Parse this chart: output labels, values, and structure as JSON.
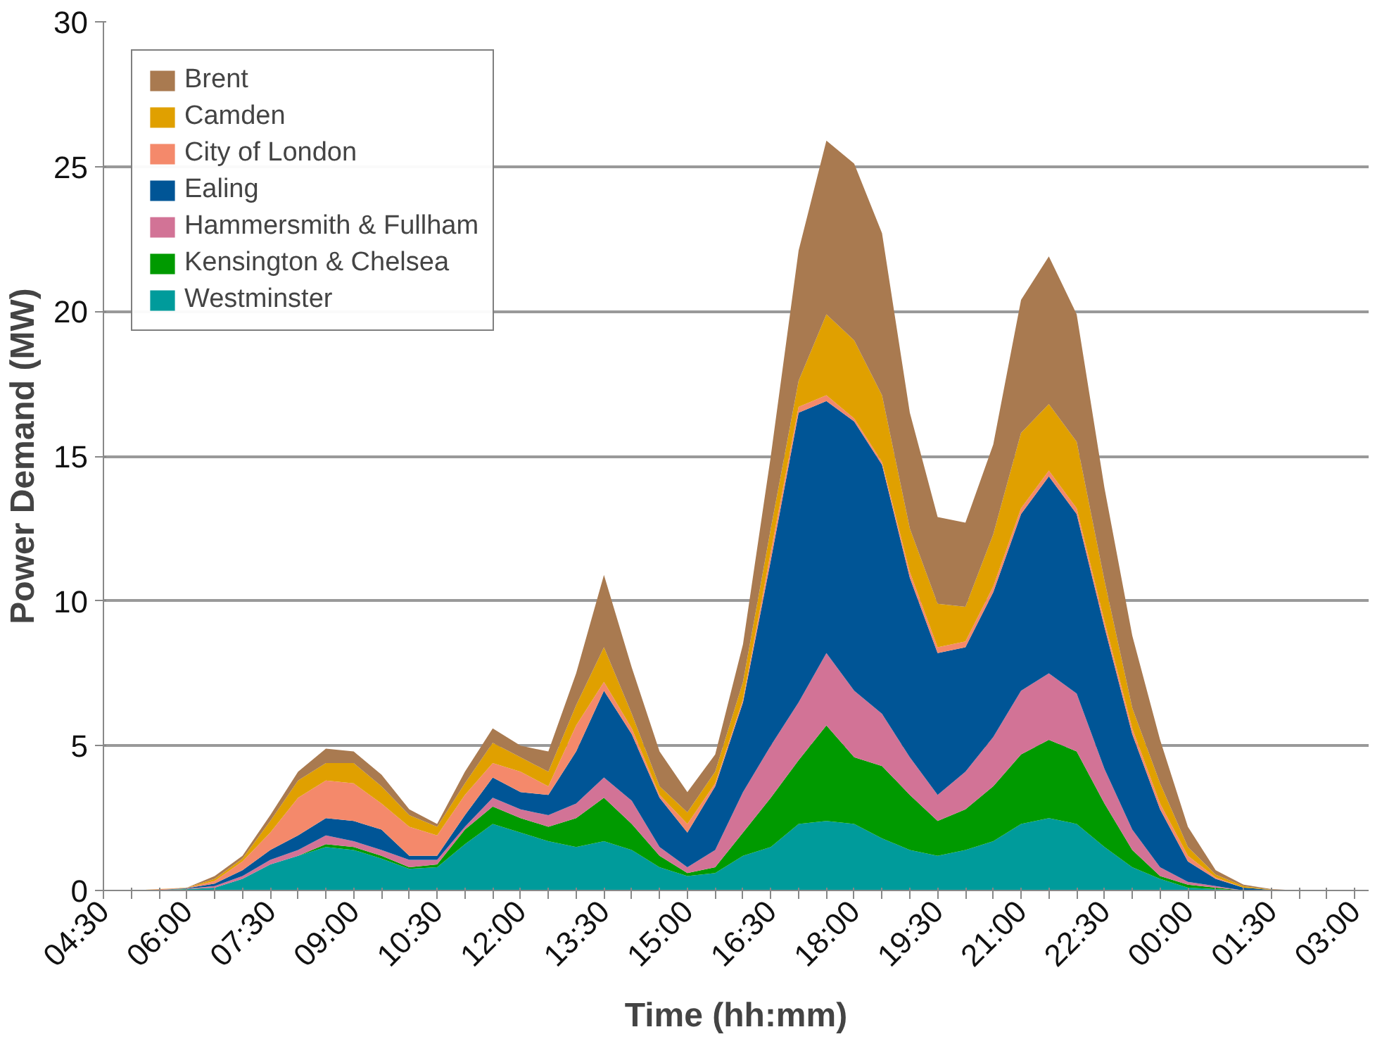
{
  "chart_data": {
    "type": "area",
    "stacked": true,
    "xlabel": "Time (hh:mm)",
    "ylabel": "Power Demand (MW)",
    "categories": [
      "04:30",
      null,
      null,
      "06:00",
      null,
      null,
      "07:30",
      null,
      null,
      "09:00",
      null,
      null,
      "10:30",
      null,
      null,
      "12:00",
      null,
      null,
      "13:30",
      null,
      null,
      "15:00",
      null,
      null,
      "16:30",
      null,
      null,
      "18:00",
      null,
      null,
      "19:30",
      null,
      null,
      "21:00",
      null,
      null,
      "22:30",
      null,
      null,
      "00:00",
      null,
      null,
      "01:30",
      null,
      null,
      "03:00"
    ],
    "ylim": [
      0,
      30
    ],
    "yticks": [
      0,
      5,
      10,
      15,
      20,
      25,
      30
    ],
    "grid": "y",
    "legend": "top left",
    "series": [
      {
        "name": "Westminster",
        "color": "#009b9b",
        "values": [
          0,
          0,
          0.02,
          0.04,
          0.1,
          0.4,
          0.9,
          1.2,
          1.5,
          1.4,
          1.1,
          0.75,
          0.8,
          1.6,
          2.3,
          2.0,
          1.7,
          1.5,
          1.7,
          1.4,
          0.8,
          0.5,
          0.6,
          1.2,
          1.5,
          2.3,
          2.4,
          2.3,
          1.8,
          1.4,
          1.2,
          1.4,
          1.7,
          2.3,
          2.5,
          2.3,
          1.5,
          0.8,
          0.4,
          0.1,
          0.05,
          0,
          0,
          0,
          0,
          0
        ]
      },
      {
        "name": "Kensington & Chelsea",
        "color": "#009a00",
        "values": [
          0,
          0,
          0,
          0.01,
          0,
          0,
          0,
          0,
          0.1,
          0.1,
          0.1,
          0.05,
          0.1,
          0.5,
          0.6,
          0.5,
          0.5,
          1.0,
          1.5,
          0.9,
          0.4,
          0.1,
          0.2,
          0.8,
          1.7,
          2.2,
          3.3,
          2.3,
          2.5,
          1.9,
          1.2,
          1.4,
          1.9,
          2.4,
          2.7,
          2.5,
          1.5,
          0.6,
          0.1,
          0.1,
          0.05,
          0,
          0,
          0,
          0,
          0
        ]
      },
      {
        "name": "Hammersmith & Fullham",
        "color": "#d27396",
        "values": [
          0,
          0,
          0,
          0.01,
          0.05,
          0.1,
          0.16,
          0.2,
          0.3,
          0.2,
          0.2,
          0.26,
          0.16,
          0.1,
          0.3,
          0.3,
          0.4,
          0.5,
          0.7,
          0.8,
          0.3,
          0.2,
          0.6,
          1.4,
          1.8,
          2.0,
          2.5,
          2.3,
          1.8,
          1.3,
          0.9,
          1.3,
          1.7,
          2.2,
          2.3,
          2.0,
          1.2,
          0.7,
          0.3,
          0.1,
          0.05,
          0,
          0,
          0,
          0,
          0
        ]
      },
      {
        "name": "Ealing",
        "color": "#005596",
        "values": [
          0,
          0,
          0,
          0.02,
          0.09,
          0.2,
          0.34,
          0.5,
          0.6,
          0.7,
          0.7,
          0.14,
          0.14,
          0.4,
          0.7,
          0.6,
          0.7,
          1.8,
          3.0,
          2.3,
          1.7,
          1.2,
          2.2,
          3.1,
          6.4,
          10.0,
          8.7,
          9.3,
          8.6,
          6.2,
          4.9,
          4.3,
          5.0,
          6.1,
          6.8,
          6.2,
          4.9,
          3.3,
          2.0,
          0.7,
          0.25,
          0.1,
          0.02,
          0,
          0,
          0
        ]
      },
      {
        "name": "City of London",
        "color": "#f4896b",
        "values": [
          0,
          0,
          0.02,
          0.01,
          0.09,
          0.3,
          0.6,
          1.3,
          1.3,
          1.3,
          0.9,
          1.0,
          0.7,
          0.7,
          0.5,
          0.7,
          0.3,
          0.9,
          0.3,
          0.2,
          0.1,
          0.3,
          0.1,
          0.1,
          0.3,
          0.2,
          0.2,
          0.1,
          0.1,
          0.2,
          0.2,
          0.2,
          0.2,
          0.2,
          0.2,
          0.2,
          0.2,
          0.2,
          0.2,
          0.2,
          0.05,
          0,
          0,
          0,
          0,
          0
        ]
      },
      {
        "name": "Camden",
        "color": "#e0a000",
        "values": [
          0,
          0,
          0.01,
          0.01,
          0.07,
          0.1,
          0.4,
          0.6,
          0.6,
          0.7,
          0.6,
          0.4,
          0.3,
          0.4,
          0.7,
          0.5,
          0.5,
          0.7,
          1.2,
          0.5,
          0.3,
          0.4,
          0.4,
          0.6,
          0.8,
          0.9,
          2.8,
          2.7,
          2.3,
          1.5,
          1.5,
          1.2,
          1.8,
          2.6,
          2.3,
          2.3,
          1.4,
          0.7,
          0.7,
          0.3,
          0.1,
          0.05,
          0.01,
          0,
          0,
          0
        ]
      },
      {
        "name": "Brent",
        "color": "#a97a50",
        "values": [
          0,
          0,
          0,
          0,
          0.1,
          0.1,
          0.2,
          0.3,
          0.5,
          0.4,
          0.4,
          0.2,
          0.1,
          0.4,
          0.5,
          0.4,
          0.7,
          1.1,
          2.5,
          1.6,
          1.2,
          0.7,
          0.6,
          1.3,
          2.5,
          4.5,
          6.0,
          6.1,
          5.6,
          4.0,
          3.0,
          2.9,
          3.1,
          4.6,
          5.1,
          4.4,
          3.2,
          2.5,
          1.5,
          0.7,
          0.15,
          0.05,
          0.02,
          0,
          0,
          0
        ]
      }
    ]
  }
}
